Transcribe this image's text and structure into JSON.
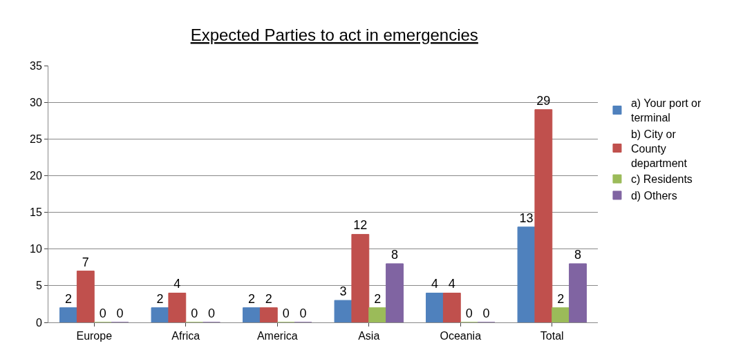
{
  "chart_data": {
    "type": "bar",
    "title": "Expected Parties to act in emergencies",
    "categories": [
      "Europe",
      "Africa",
      "America",
      "Asia",
      "Oceania",
      "Total"
    ],
    "series": [
      {
        "name": "a) Your port or terminal",
        "color": "#4f81bd",
        "values": [
          2,
          2,
          2,
          3,
          4,
          13
        ]
      },
      {
        "name": "b) City or County department",
        "color": "#c0504d",
        "values": [
          7,
          4,
          2,
          12,
          4,
          29
        ]
      },
      {
        "name": "c) Residents",
        "color": "#9bbb59",
        "values": [
          0,
          0,
          0,
          2,
          0,
          2
        ]
      },
      {
        "name": "d) Others",
        "color": "#8064a2",
        "values": [
          0,
          0,
          0,
          8,
          0,
          8
        ]
      }
    ],
    "ylim": [
      0,
      35
    ],
    "yticks": [
      0,
      5,
      10,
      15,
      20,
      25,
      30,
      35
    ],
    "grid": "y",
    "legend": "right",
    "data_labels": true
  }
}
